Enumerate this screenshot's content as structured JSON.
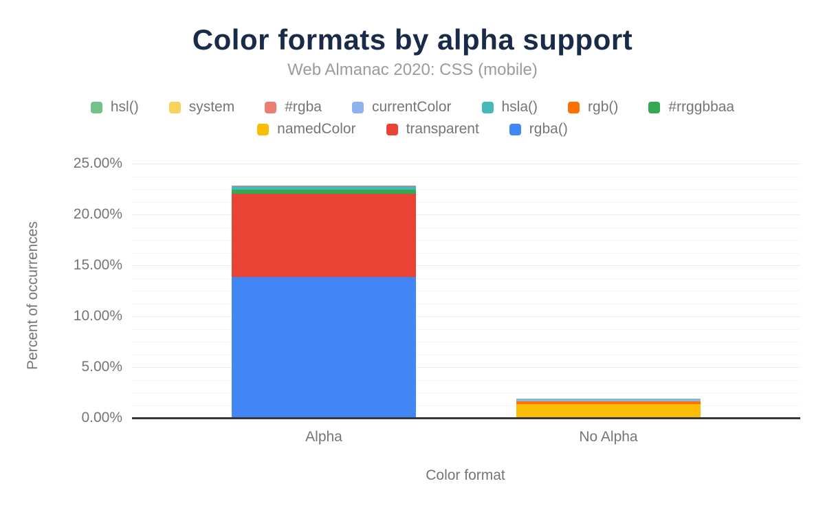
{
  "header": {
    "title": "Color formats by alpha support",
    "subtitle": "Web Almanac 2020: CSS (mobile)"
  },
  "colors": {
    "title_text": "#1a2b49",
    "subtitle_text": "#9b9b9b",
    "muted_text": "#757575",
    "axis_line": "#333840",
    "gridline_major": "#ececec",
    "gridline_minor": "#f6f6f6",
    "background": "#ffffff"
  },
  "legend": {
    "rows": [
      [
        "hsl()",
        "system",
        "#rgba",
        "currentColor",
        "hsla()",
        "rgb()",
        "#rrggbbaa"
      ],
      [
        "namedColor",
        "transparent",
        "rgba()"
      ]
    ]
  },
  "chart_data": {
    "type": "bar",
    "stacked": true,
    "title": "Color formats by alpha support",
    "subtitle": "Web Almanac 2020: CSS (mobile)",
    "categories": [
      "Alpha",
      "No Alpha"
    ],
    "series": [
      {
        "name": "hsl()",
        "color": "#72c28a",
        "values": [
          0,
          0.01
        ]
      },
      {
        "name": "system",
        "color": "#f7d35c",
        "values": [
          0,
          0.01
        ]
      },
      {
        "name": "#rgba",
        "color": "#ec7d72",
        "values": [
          0.02,
          0
        ]
      },
      {
        "name": "currentColor",
        "color": "#8fb1ef",
        "values": [
          0,
          0.22
        ]
      },
      {
        "name": "hsla()",
        "color": "#45b8ba",
        "values": [
          0.44,
          0
        ]
      },
      {
        "name": "rgb()",
        "color": "#fe7000",
        "values": [
          0,
          0.27
        ]
      },
      {
        "name": "#rrggbbaa",
        "color": "#34a853",
        "values": [
          0.41,
          0
        ]
      },
      {
        "name": "namedColor",
        "color": "#fbbc04",
        "values": [
          0,
          1.38
        ]
      },
      {
        "name": "transparent",
        "color": "#ea4335",
        "values": [
          8.18,
          0
        ]
      },
      {
        "name": "rgba()",
        "color": "#4285f4",
        "values": [
          13.82,
          0
        ]
      }
    ],
    "stack_order_bottom_to_top": [
      "rgba()",
      "transparent",
      "namedColor",
      "#rrggbbaa",
      "rgb()",
      "hsla()",
      "currentColor",
      "#rgba",
      "system",
      "hsl()"
    ],
    "totals": {
      "Alpha": 22.87,
      "No Alpha": 1.89
    },
    "xlabel": "Color format",
    "ylabel": "Percent of occurrences",
    "ylim": [
      0,
      25
    ],
    "yticks": [
      {
        "value": 0,
        "label": "0.00%"
      },
      {
        "value": 5,
        "label": "5.00%"
      },
      {
        "value": 10,
        "label": "10.00%"
      },
      {
        "value": 15,
        "label": "15.00%"
      },
      {
        "value": 20,
        "label": "20.00%"
      },
      {
        "value": 25,
        "label": "25.00%"
      }
    ],
    "grid": {
      "major_step_pct": 5,
      "minor_step_pct": 1.25,
      "visible": true
    },
    "legend_position": "top"
  }
}
